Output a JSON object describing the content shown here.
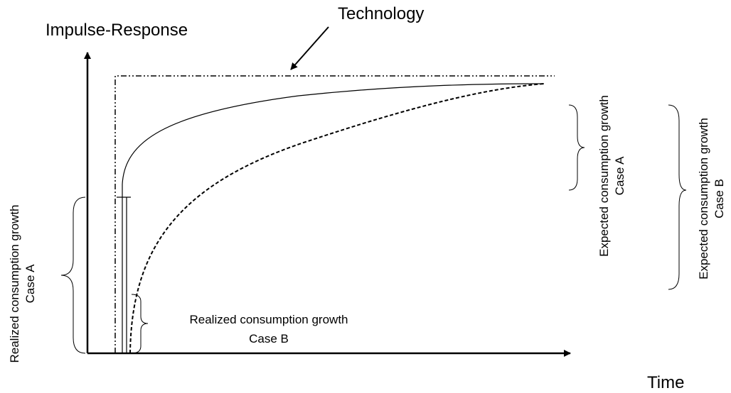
{
  "labels": {
    "y_axis": "Impulse-Response",
    "x_axis": "Time",
    "technology": "Technology"
  },
  "annotations": {
    "realized_a": [
      "Realized consumption growth",
      "Case A"
    ],
    "realized_b": [
      "Realized consumption growth",
      "Case B"
    ],
    "expected_a": [
      "Expected consumption growth",
      "Case A"
    ],
    "expected_b": [
      "Expected consumption growth",
      "Case B"
    ]
  }
}
